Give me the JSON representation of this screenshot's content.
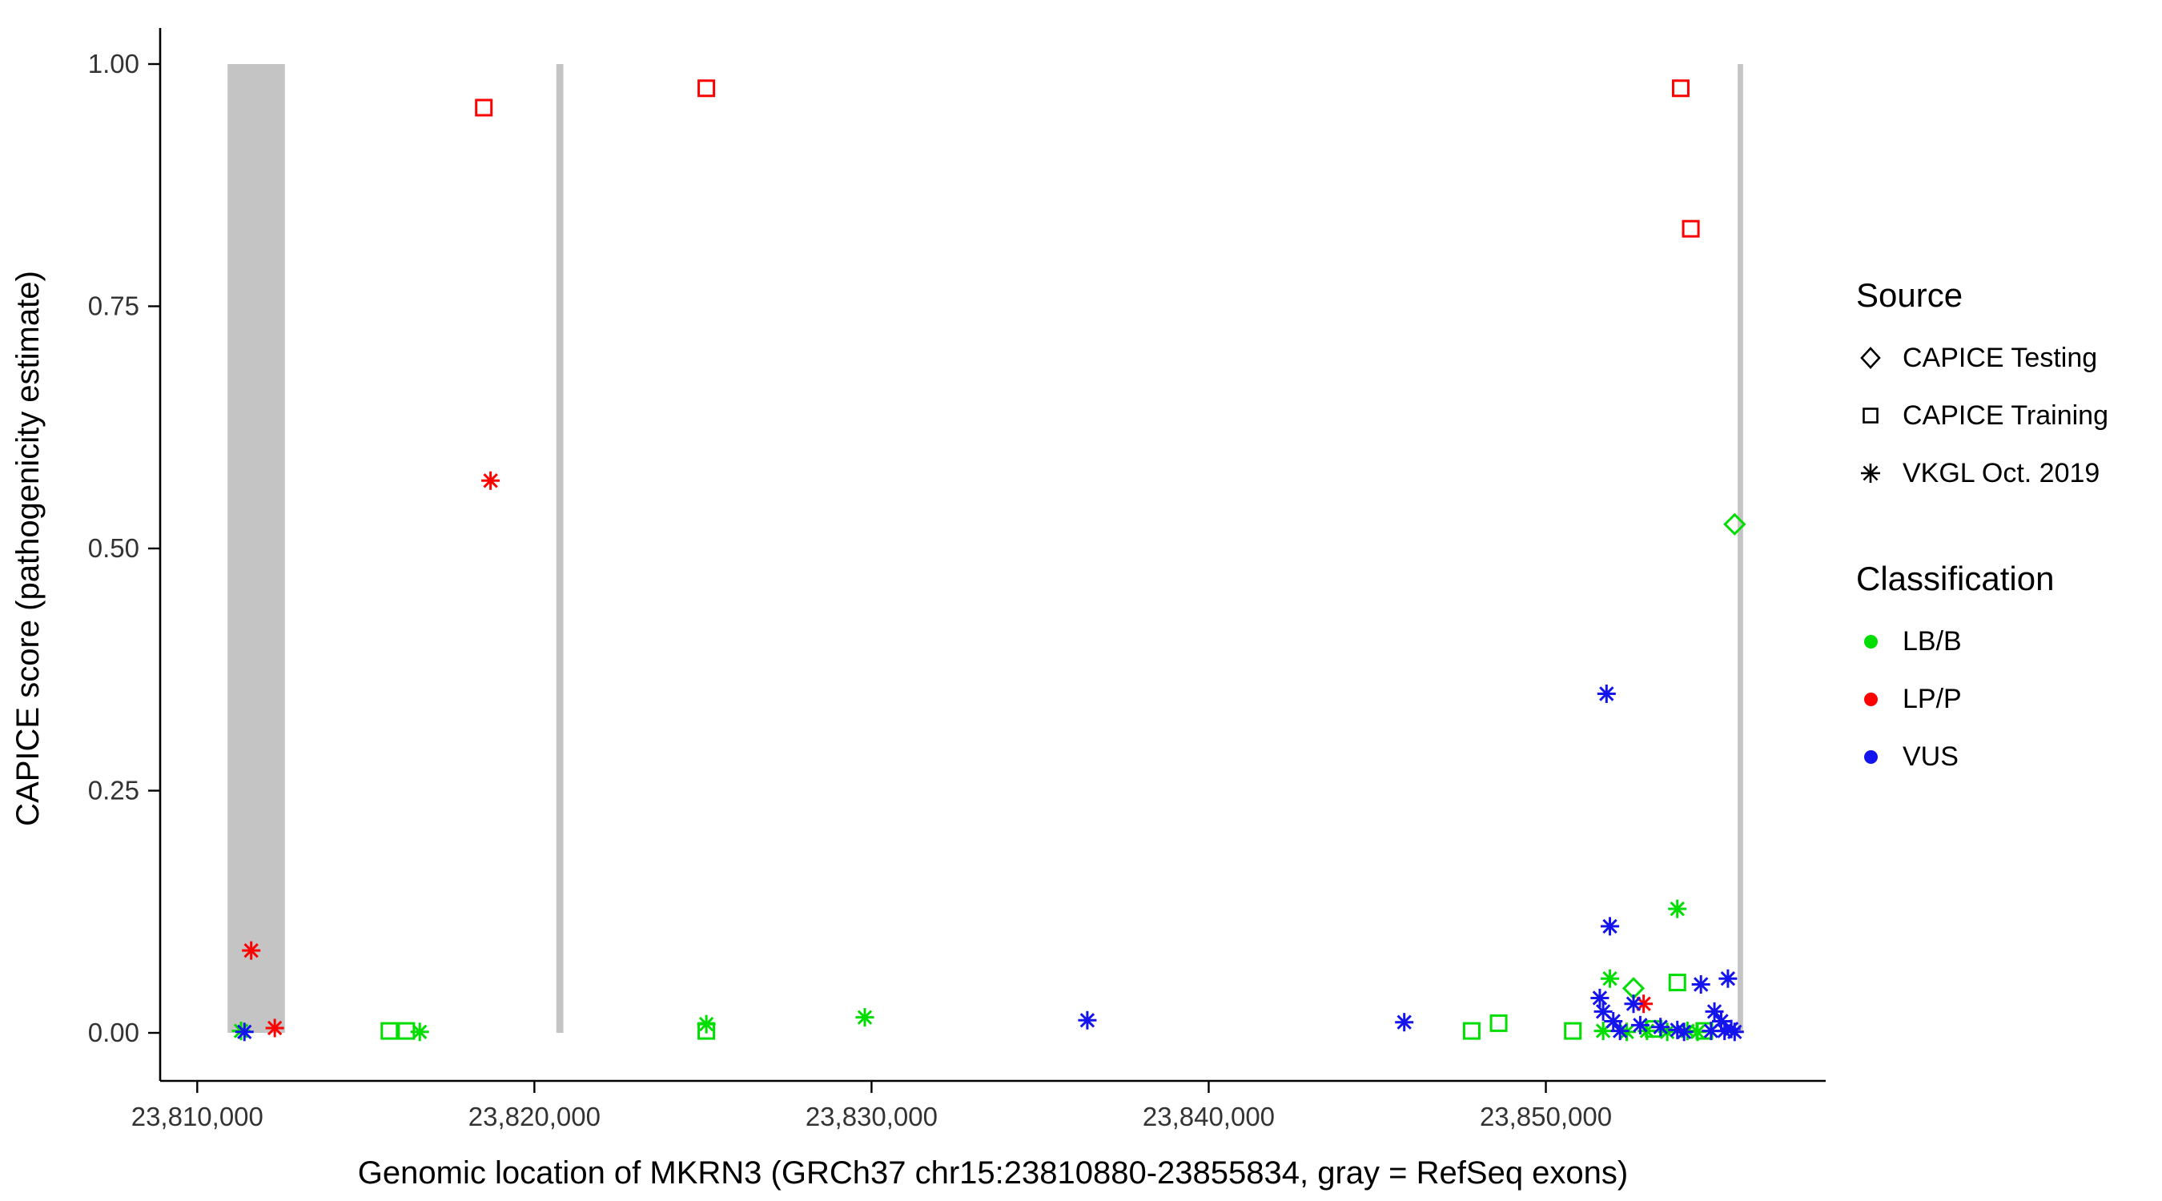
{
  "chart_data": {
    "type": "scatter",
    "title": "",
    "xlabel": "Genomic location of MKRN3 (GRCh37 chr15:23810880-23855834, gray = RefSeq exons)",
    "ylabel": "CAPICE score (pathogenicity estimate)",
    "x_domain": [
      23808900,
      23858300
    ],
    "y_domain": [
      0,
      1
    ],
    "grid": "off",
    "x_ticks": [
      {
        "value": 23810000,
        "label": "23,810,000"
      },
      {
        "value": 23820000,
        "label": "23,820,000"
      },
      {
        "value": 23830000,
        "label": "23,830,000"
      },
      {
        "value": 23840000,
        "label": "23,840,000"
      },
      {
        "value": 23850000,
        "label": "23,850,000"
      }
    ],
    "y_ticks": [
      {
        "value": 0.0,
        "label": "0.00"
      },
      {
        "value": 0.25,
        "label": "0.25"
      },
      {
        "value": 0.5,
        "label": "0.50"
      },
      {
        "value": 0.75,
        "label": "0.75"
      },
      {
        "value": 1.0,
        "label": "1.00"
      }
    ],
    "band_color": "#C4C4C4",
    "exon_bands": [
      {
        "start": 23810900,
        "end": 23812600
      },
      {
        "start": 23820650,
        "end": 23820860
      },
      {
        "start": 23855690,
        "end": 23855850
      }
    ],
    "legend": {
      "source_title": "Source",
      "sources": [
        {
          "label": "CAPICE Testing",
          "symbol": "diamond"
        },
        {
          "label": "CAPICE Training",
          "symbol": "square"
        },
        {
          "label": "VKGL Oct. 2019",
          "symbol": "asterisk"
        }
      ],
      "classification_title": "Classification",
      "classes": [
        {
          "label": "LB/B",
          "color": "#00DD00"
        },
        {
          "label": "LP/P",
          "color": "#FF0000"
        },
        {
          "label": "VUS",
          "color": "#1414EE"
        }
      ]
    },
    "points": [
      {
        "x": 23818500,
        "y": 0.955,
        "source": "training",
        "class": "LP/P"
      },
      {
        "x": 23825100,
        "y": 0.975,
        "source": "training",
        "class": "LP/P"
      },
      {
        "x": 23854000,
        "y": 0.975,
        "source": "training",
        "class": "LP/P"
      },
      {
        "x": 23854300,
        "y": 0.83,
        "source": "training",
        "class": "LP/P"
      },
      {
        "x": 23818700,
        "y": 0.57,
        "source": "vkgl",
        "class": "LP/P"
      },
      {
        "x": 23811600,
        "y": 0.085,
        "source": "vkgl",
        "class": "LP/P"
      },
      {
        "x": 23812300,
        "y": 0.005,
        "source": "vkgl",
        "class": "LP/P"
      },
      {
        "x": 23852900,
        "y": 0.03,
        "source": "vkgl",
        "class": "LP/P"
      },
      {
        "x": 23855600,
        "y": 0.525,
        "source": "testing",
        "class": "LB/B"
      },
      {
        "x": 23852600,
        "y": 0.046,
        "source": "testing",
        "class": "LB/B"
      },
      {
        "x": 23815700,
        "y": 0.002,
        "source": "training",
        "class": "LB/B"
      },
      {
        "x": 23816200,
        "y": 0.002,
        "source": "training",
        "class": "LB/B"
      },
      {
        "x": 23825100,
        "y": 0.002,
        "source": "training",
        "class": "LB/B"
      },
      {
        "x": 23847800,
        "y": 0.002,
        "source": "training",
        "class": "LB/B"
      },
      {
        "x": 23848600,
        "y": 0.01,
        "source": "training",
        "class": "LB/B"
      },
      {
        "x": 23850800,
        "y": 0.002,
        "source": "training",
        "class": "LB/B"
      },
      {
        "x": 23853900,
        "y": 0.052,
        "source": "training",
        "class": "LB/B"
      },
      {
        "x": 23853200,
        "y": 0.004,
        "source": "training",
        "class": "LB/B"
      },
      {
        "x": 23854700,
        "y": 0.002,
        "source": "training",
        "class": "LB/B"
      },
      {
        "x": 23811300,
        "y": 0.002,
        "source": "vkgl",
        "class": "LB/B"
      },
      {
        "x": 23816600,
        "y": 0.001,
        "source": "vkgl",
        "class": "LB/B"
      },
      {
        "x": 23825100,
        "y": 0.009,
        "source": "vkgl",
        "class": "LB/B"
      },
      {
        "x": 23829800,
        "y": 0.016,
        "source": "vkgl",
        "class": "LB/B"
      },
      {
        "x": 23851900,
        "y": 0.056,
        "source": "vkgl",
        "class": "LB/B"
      },
      {
        "x": 23853900,
        "y": 0.128,
        "source": "vkgl",
        "class": "LB/B"
      },
      {
        "x": 23851700,
        "y": 0.002,
        "source": "vkgl",
        "class": "LB/B"
      },
      {
        "x": 23852400,
        "y": 0.001,
        "source": "vkgl",
        "class": "LB/B"
      },
      {
        "x": 23853000,
        "y": 0.002,
        "source": "vkgl",
        "class": "LB/B"
      },
      {
        "x": 23853600,
        "y": 0.001,
        "source": "vkgl",
        "class": "LB/B"
      },
      {
        "x": 23854200,
        "y": 0.002,
        "source": "vkgl",
        "class": "LB/B"
      },
      {
        "x": 23854500,
        "y": 0.001,
        "source": "vkgl",
        "class": "LB/B"
      },
      {
        "x": 23811400,
        "y": 0.001,
        "source": "vkgl",
        "class": "VUS"
      },
      {
        "x": 23836400,
        "y": 0.013,
        "source": "vkgl",
        "class": "VUS"
      },
      {
        "x": 23845800,
        "y": 0.011,
        "source": "vkgl",
        "class": "VUS"
      },
      {
        "x": 23851800,
        "y": 0.35,
        "source": "vkgl",
        "class": "VUS"
      },
      {
        "x": 23851900,
        "y": 0.11,
        "source": "vkgl",
        "class": "VUS"
      },
      {
        "x": 23851600,
        "y": 0.036,
        "source": "vkgl",
        "class": "VUS"
      },
      {
        "x": 23851700,
        "y": 0.022,
        "source": "vkgl",
        "class": "VUS"
      },
      {
        "x": 23852000,
        "y": 0.012,
        "source": "vkgl",
        "class": "VUS"
      },
      {
        "x": 23852200,
        "y": 0.002,
        "source": "vkgl",
        "class": "VUS"
      },
      {
        "x": 23852600,
        "y": 0.03,
        "source": "vkgl",
        "class": "VUS"
      },
      {
        "x": 23853400,
        "y": 0.006,
        "source": "vkgl",
        "class": "VUS"
      },
      {
        "x": 23854600,
        "y": 0.05,
        "source": "vkgl",
        "class": "VUS"
      },
      {
        "x": 23855400,
        "y": 0.056,
        "source": "vkgl",
        "class": "VUS"
      },
      {
        "x": 23855000,
        "y": 0.022,
        "source": "vkgl",
        "class": "VUS"
      },
      {
        "x": 23855200,
        "y": 0.012,
        "source": "vkgl",
        "class": "VUS"
      },
      {
        "x": 23855300,
        "y": 0.002,
        "source": "vkgl",
        "class": "VUS"
      },
      {
        "x": 23855500,
        "y": 0.004,
        "source": "vkgl",
        "class": "VUS"
      },
      {
        "x": 23855600,
        "y": 0.001,
        "source": "vkgl",
        "class": "VUS"
      },
      {
        "x": 23854900,
        "y": 0.002,
        "source": "vkgl",
        "class": "VUS"
      },
      {
        "x": 23853900,
        "y": 0.003,
        "source": "vkgl",
        "class": "VUS"
      },
      {
        "x": 23852800,
        "y": 0.008,
        "source": "vkgl",
        "class": "VUS"
      },
      {
        "x": 23854100,
        "y": 0.001,
        "source": "vkgl",
        "class": "VUS"
      }
    ]
  }
}
